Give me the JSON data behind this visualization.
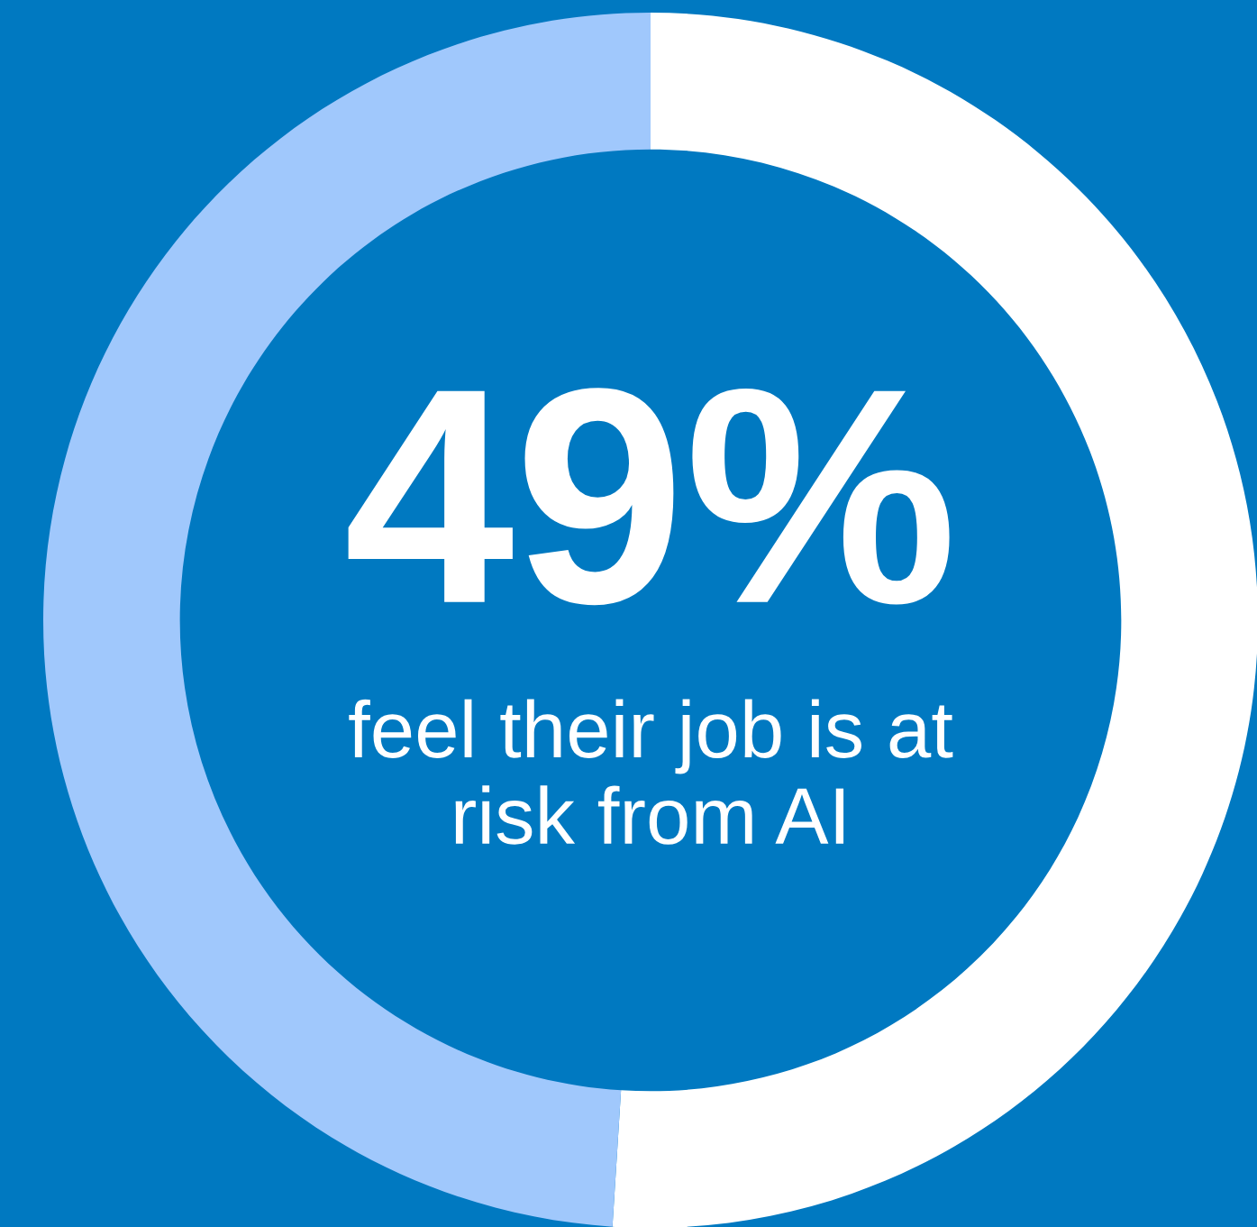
{
  "chart_data": {
    "type": "donut",
    "categories": [
      null,
      null
    ],
    "values": [
      51,
      49
    ],
    "colors": [
      "#ffffff",
      "#a0c8fc"
    ],
    "annotations": [
      "49%",
      "feel their job is at\nrisk from AI"
    ]
  }
}
